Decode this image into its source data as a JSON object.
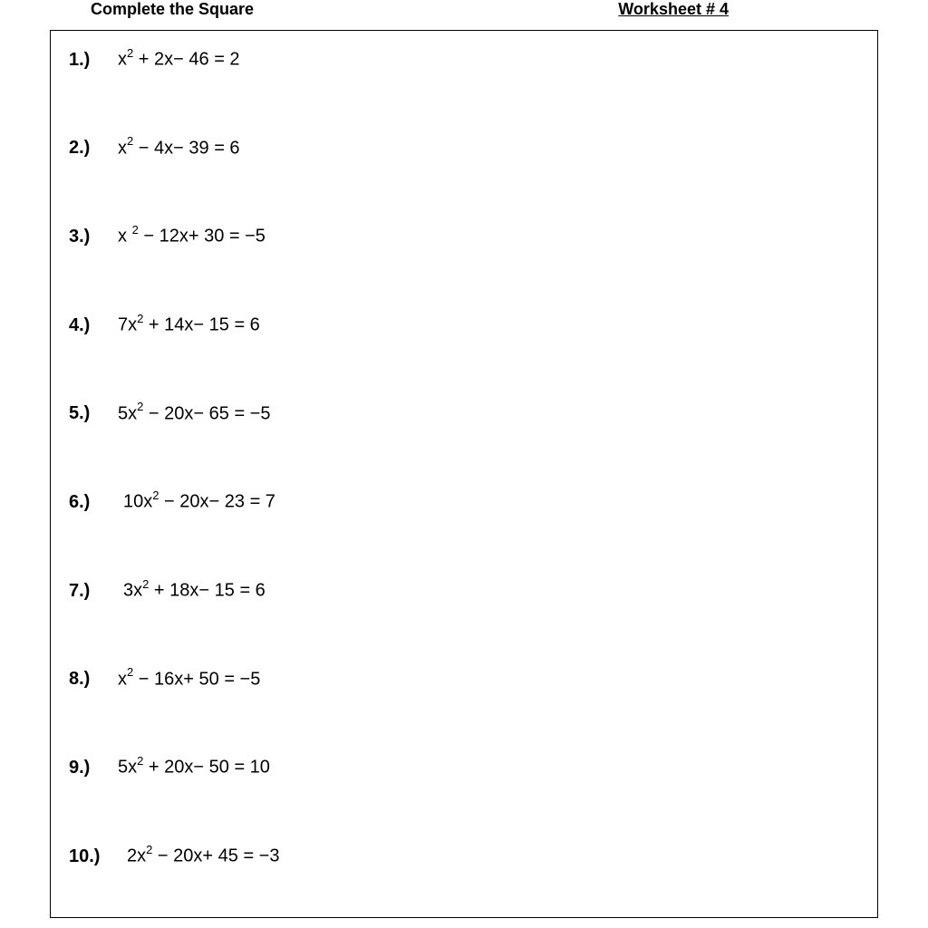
{
  "header": {
    "title_left": "Complete the Square",
    "title_right": "Worksheet # 4"
  },
  "worksheet": {
    "problems": [
      {
        "number": "1.)",
        "coeff": "",
        "b_sign": "+",
        "b": "2",
        "c_sign": "−",
        "c": "46",
        "rhs": "2",
        "indent": 0
      },
      {
        "number": "2.)",
        "coeff": "",
        "b_sign": "−",
        "b": "4",
        "c_sign": "−",
        "c": "39",
        "rhs": "6",
        "indent": 0
      },
      {
        "number": "3.)",
        "coeff": "",
        "b_sign": "−",
        "b": "12",
        "c_sign": "+",
        "c": "30",
        "rhs": "−5",
        "indent": 0,
        "sup_space": " "
      },
      {
        "number": "4.)",
        "coeff": "7",
        "b_sign": "+",
        "b": "14",
        "c_sign": "−",
        "c": "15",
        "rhs": "6",
        "indent": 0
      },
      {
        "number": "5.)",
        "coeff": "5",
        "b_sign": "−",
        "b": "20",
        "c_sign": "−",
        "c": "65",
        "rhs": "−5",
        "indent": 0
      },
      {
        "number": "6.)",
        "coeff": "10",
        "b_sign": "−",
        "b": "20",
        "c_sign": "−",
        "c": "23",
        "rhs": "7",
        "indent": 6
      },
      {
        "number": "7.)",
        "coeff": "3",
        "b_sign": "+",
        "b": "18",
        "c_sign": "−",
        "c": "15",
        "rhs": "6",
        "indent": 6
      },
      {
        "number": "8.)",
        "coeff": "",
        "b_sign": "−",
        "b": "16",
        "c_sign": "+",
        "c": "50",
        "rhs": "−5",
        "indent": 0
      },
      {
        "number": "9.)",
        "coeff": "5",
        "b_sign": "+",
        "b": "20",
        "c_sign": "−",
        "c": "50",
        "rhs": "10",
        "indent": 0
      },
      {
        "number": "10.)",
        "coeff": "2",
        "b_sign": "−",
        "b": "20",
        "c_sign": "+",
        "c": "45",
        "rhs": "−3",
        "indent": 10
      }
    ]
  },
  "style": {
    "background_color": "#ffffff",
    "text_color": "#000000",
    "border_color": "#000000",
    "font_family": "Arial, Helvetica, sans-serif",
    "header_fontsize": 18,
    "problem_fontsize": 20,
    "problem_spacing": 72
  }
}
